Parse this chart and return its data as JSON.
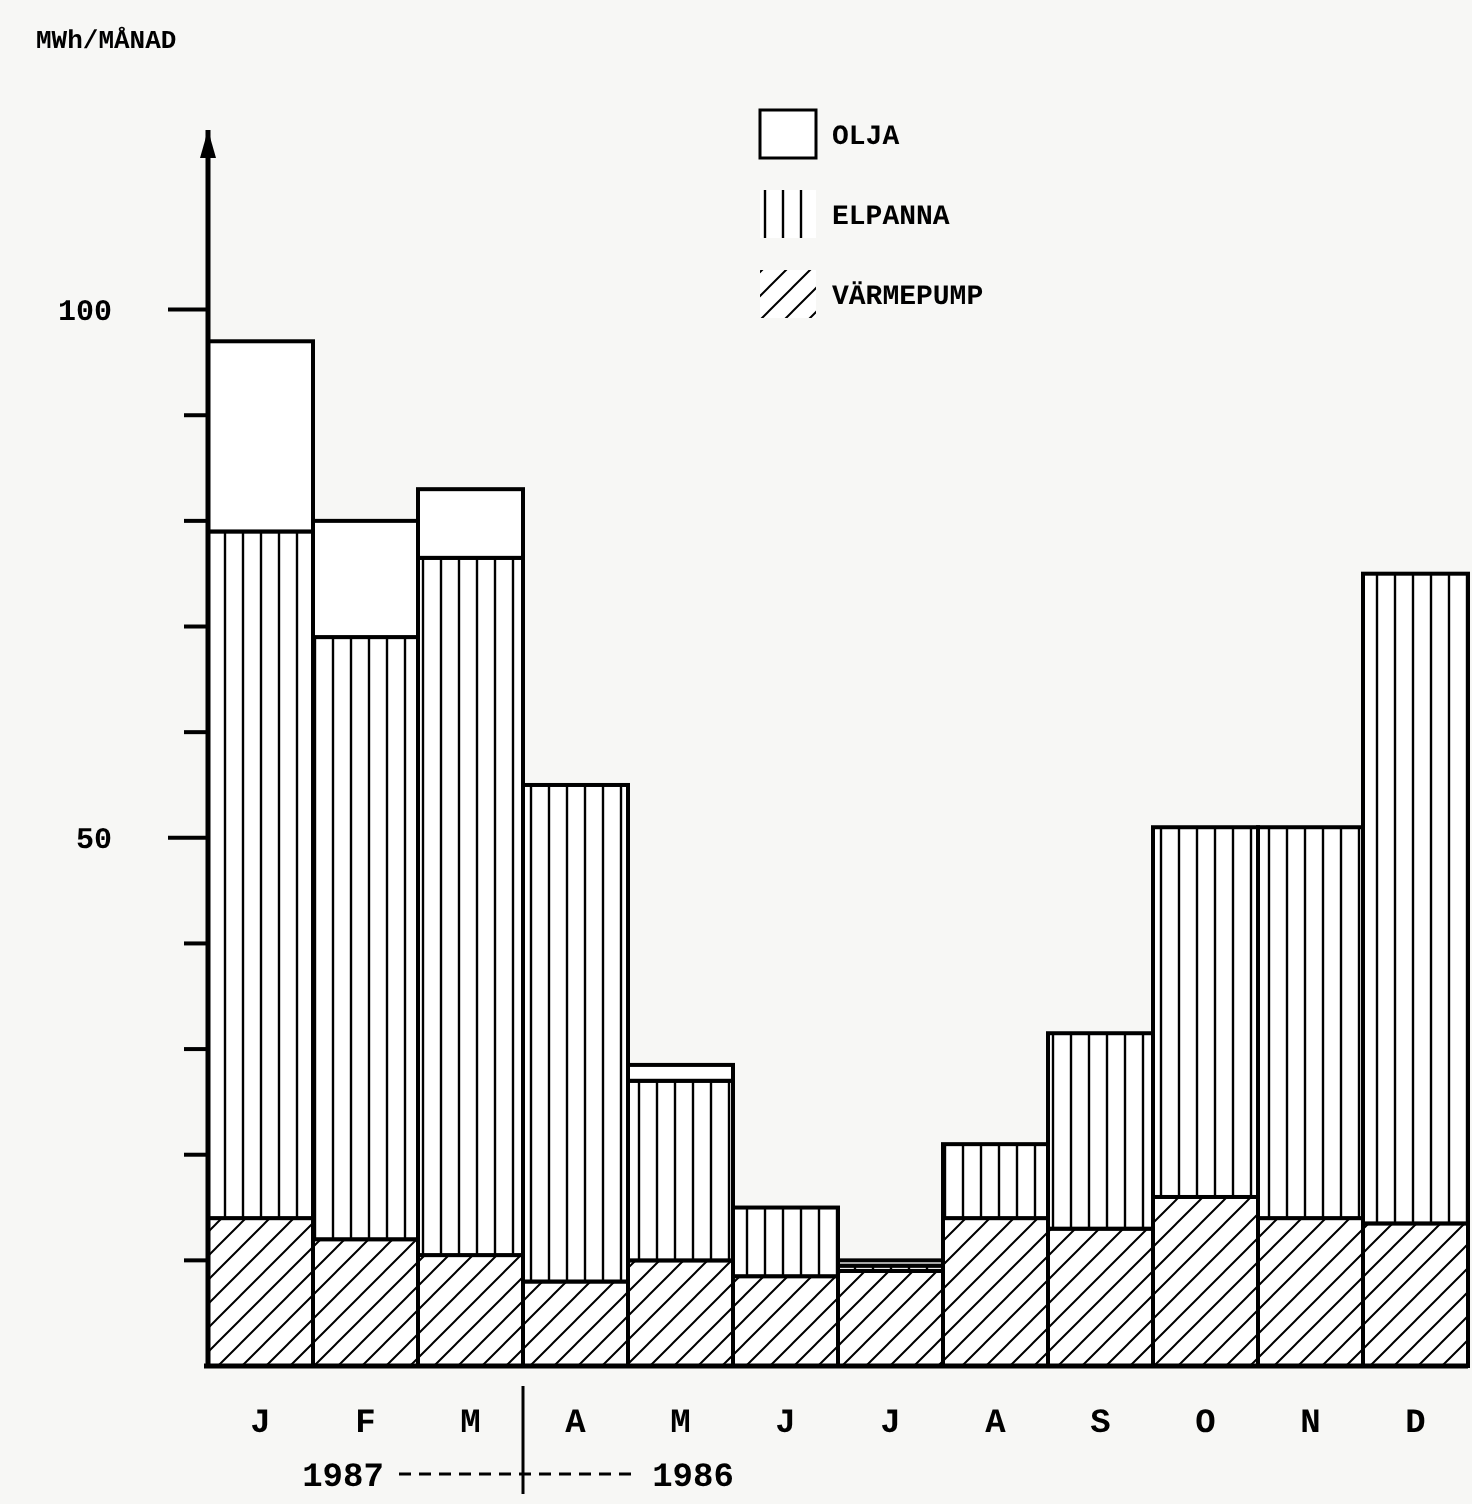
{
  "chart_data": {
    "type": "bar",
    "stacked": true,
    "ylabel": "MWh/MÅNAD",
    "categories": [
      "J",
      "F",
      "M",
      "A",
      "M",
      "J",
      "J",
      "A",
      "S",
      "O",
      "N",
      "D"
    ],
    "series": [
      {
        "name": "VÄRMEPUMP",
        "color": "#000000",
        "values": [
          14,
          12,
          10.5,
          8,
          10,
          8.5,
          9,
          14,
          13,
          16,
          14,
          13.5
        ]
      },
      {
        "name": "ELPANNA",
        "color": "#000000",
        "values": [
          65,
          57,
          66,
          47,
          17,
          6.5,
          0.5,
          7,
          18.5,
          35,
          37,
          61.5
        ]
      },
      {
        "name": "OLJA",
        "color": "#000000",
        "values": [
          18,
          11,
          6.5,
          0,
          1.5,
          0,
          0.5,
          0,
          0,
          0,
          0,
          0
        ]
      }
    ],
    "ylim": [
      0,
      117
    ],
    "yticks": [
      {
        "value": 10,
        "label": null
      },
      {
        "value": 20,
        "label": null
      },
      {
        "value": 30,
        "label": null
      },
      {
        "value": 40,
        "label": null
      },
      50,
      {
        "value": 60,
        "label": null
      },
      {
        "value": 70,
        "label": null
      },
      {
        "value": 80,
        "label": null
      },
      {
        "value": 90,
        "label": null
      },
      100
    ],
    "legend": "top right",
    "grid": false,
    "annotations": [
      "1987",
      "1986"
    ]
  }
}
